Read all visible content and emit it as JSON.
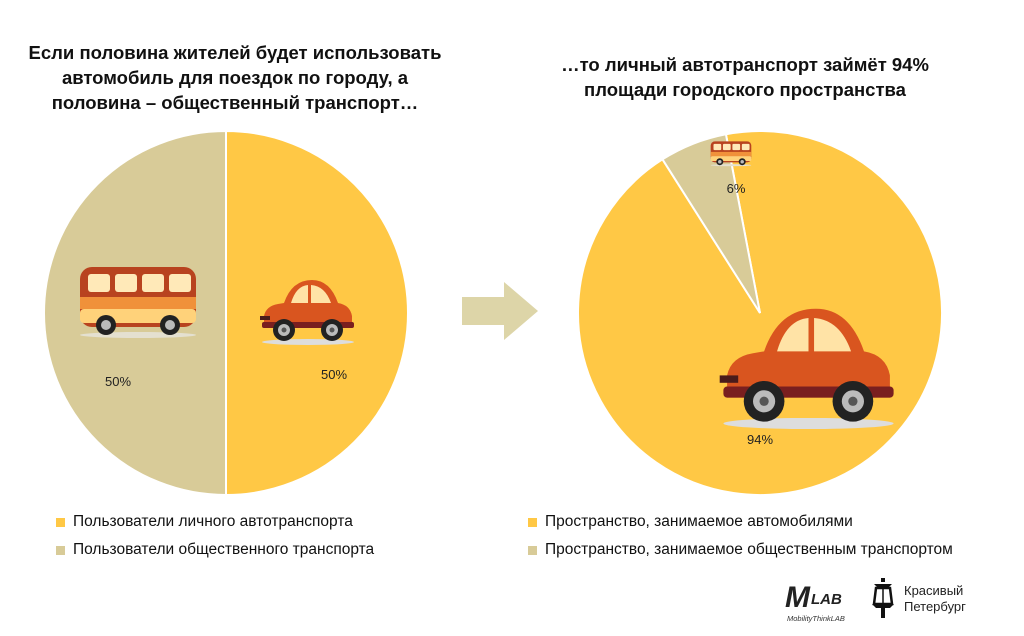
{
  "left": {
    "title": "Если половина жителей будет использовать автомобиль для поездок по городу, а половина – общественный транспорт…",
    "legend": [
      {
        "label": "Пользователи личного автотранспорта",
        "color": "#FFC845"
      },
      {
        "label": "Пользователи общественного транспорта",
        "color": "#D8CB98"
      }
    ]
  },
  "right": {
    "title": "…то личный автотранспорт займёт 94% площади городского пространства",
    "legend": [
      {
        "label": "Пространство, занимаемое автомобилями",
        "color": "#FFC845"
      },
      {
        "label": "Пространство, занимаемое общественным транспортом",
        "color": "#D8CB98"
      }
    ]
  },
  "logos": {
    "mlab_big": "M",
    "mlab_small": "LAB",
    "mlab_sub": "MobilityThinkLAB",
    "kp_line1": "Красивый",
    "kp_line2": "Петербург"
  },
  "colors": {
    "car_share": "#FFC845",
    "transit_share": "#D8CB98",
    "arrow": "#DDD5A8"
  },
  "chart_data": [
    {
      "type": "pie",
      "title": "Если половина жителей будет использовать автомобиль для поездок по городу, а половина – общественный транспорт…",
      "series": [
        {
          "name": "Пользователи личного автотранспорта",
          "value": 50,
          "label": "50%",
          "color": "#FFC845"
        },
        {
          "name": "Пользователи общественного транспорта",
          "value": 50,
          "label": "50%",
          "color": "#D8CB98"
        }
      ],
      "legend": "bottom"
    },
    {
      "type": "pie",
      "title": "…то личный автотранспорт займёт 94% площади городского пространства",
      "series": [
        {
          "name": "Пространство, занимаемое автомобилями",
          "value": 94,
          "label": "94%",
          "color": "#FFC845"
        },
        {
          "name": "Пространство, занимаемое общественным транспортом",
          "value": 6,
          "label": "6%",
          "color": "#D8CB98"
        }
      ],
      "legend": "bottom"
    }
  ]
}
